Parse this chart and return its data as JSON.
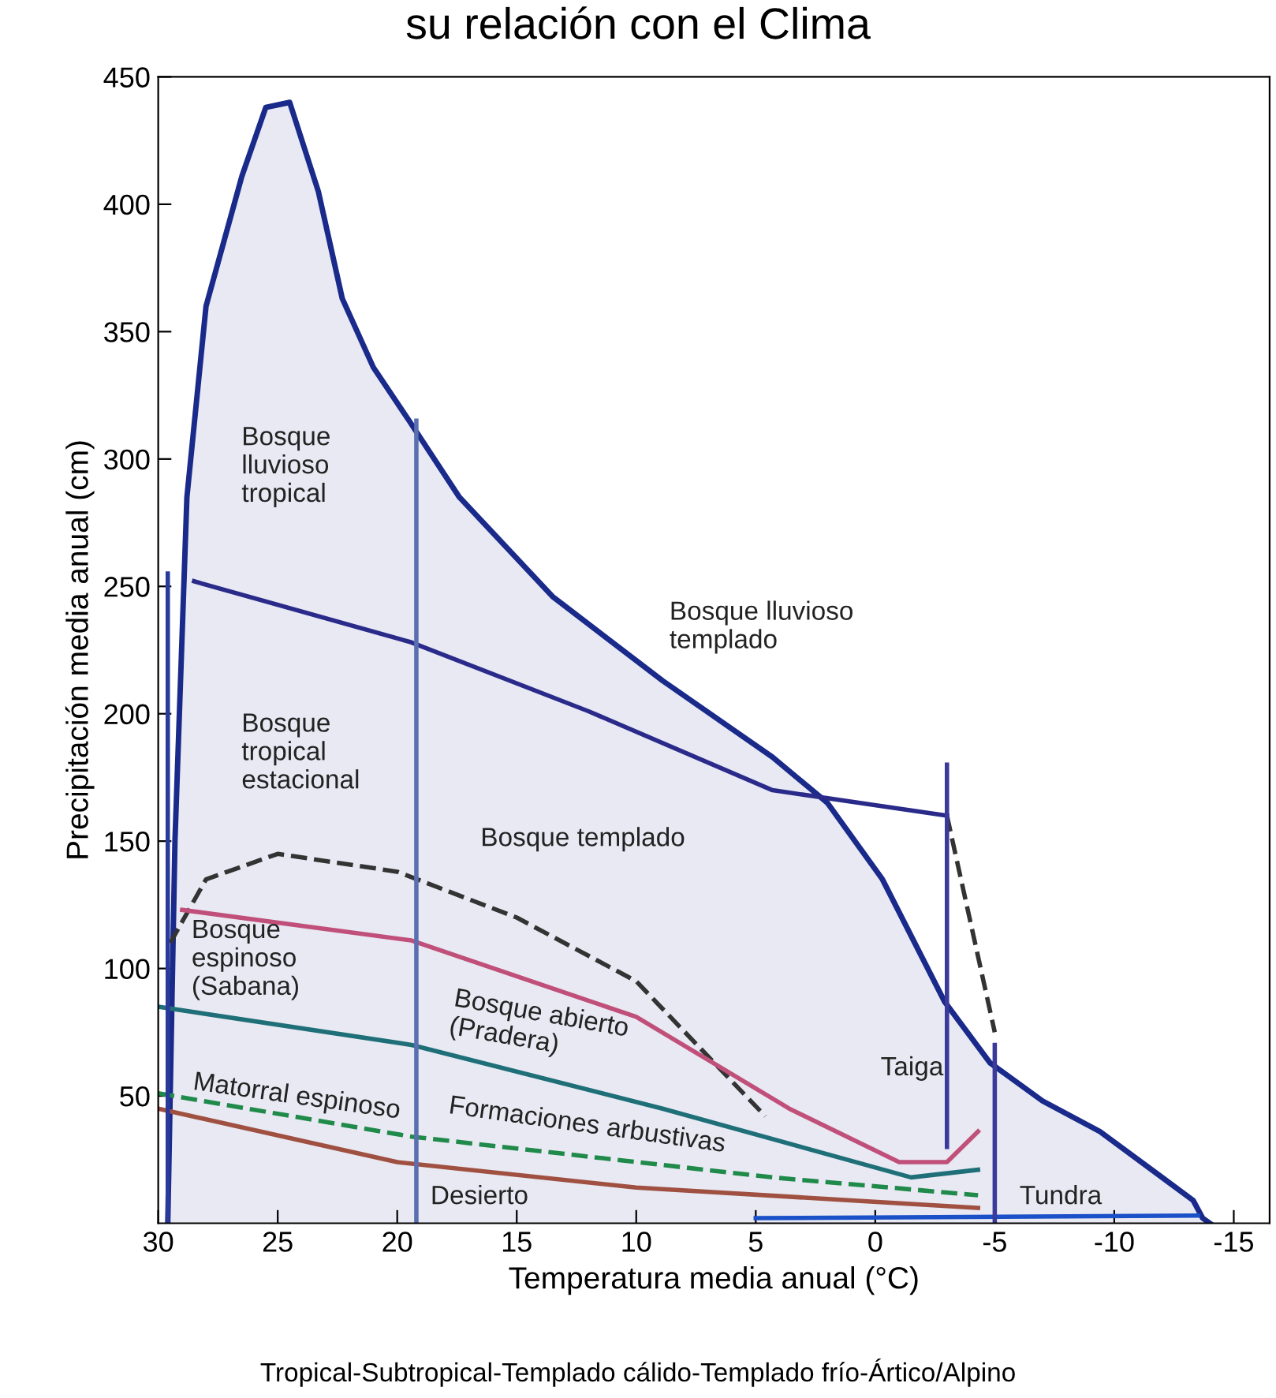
{
  "chart_data": {
    "type": "line",
    "title": "su relación con el Clima",
    "xlabel": "Temperatura media anual (°C)",
    "ylabel": "Precipitación media anual (cm)",
    "xlim": [
      30,
      -16.5
    ],
    "ylim": [
      0,
      450
    ],
    "xticks": [
      30,
      25,
      20,
      15,
      10,
      5,
      0,
      -5,
      -10,
      -15
    ],
    "yticks": [
      50,
      100,
      150,
      200,
      250,
      300,
      350,
      400,
      450
    ],
    "grid": false,
    "legend": false,
    "marker": "none",
    "series": [
      {
        "type": "area",
        "color": "#1a2a8a",
        "x": [
          29.6,
          29.3,
          28.8,
          28,
          26.5,
          25.5,
          24.5,
          23.3,
          22.3,
          21,
          19.5,
          17.4,
          13.5,
          8.9,
          4.3,
          2,
          -0.3,
          -2.9,
          -4.8,
          -7,
          -9.4,
          -12,
          -13.3,
          -13.7,
          -14
        ],
        "values": [
          0,
          150,
          285,
          360,
          411,
          438,
          440,
          405,
          363,
          336,
          315,
          285,
          246,
          213,
          183,
          165,
          135,
          87,
          63,
          48,
          36,
          18,
          9,
          2,
          0
        ]
      },
      {
        "color": "#2a2a8a",
        "x": [
          28.5,
          19.4,
          12,
          4.3,
          -3
        ],
        "values": [
          252,
          228,
          201,
          170,
          160
        ]
      },
      {
        "type": "line",
        "color": "#333333",
        "line_style": "dashed",
        "x": [
          -3,
          -5
        ],
        "values": [
          160,
          75
        ]
      },
      {
        "type": "line",
        "color": "#333333",
        "line_style": "dashed",
        "x": [
          29.5,
          28,
          25,
          20,
          15,
          10,
          4.6
        ],
        "values": [
          110,
          135,
          145,
          138,
          120,
          95,
          42
        ]
      },
      {
        "type": "line",
        "color": "#c0507a",
        "x": [
          29,
          19.4,
          10,
          3.6,
          -1,
          -3,
          -4.3
        ],
        "values": [
          123,
          111,
          81,
          45,
          24,
          24,
          36
        ]
      },
      {
        "type": "line",
        "color": "#1f6f78",
        "x": [
          30,
          19.4,
          8.9,
          -1.5,
          -4.3
        ],
        "values": [
          85,
          70,
          45,
          18,
          21
        ]
      },
      {
        "type": "line",
        "color": "#1f8a4a",
        "line_style": "dashed",
        "x": [
          30,
          19.4,
          4.3,
          -4.3
        ],
        "values": [
          51,
          34,
          18,
          11
        ]
      },
      {
        "type": "line",
        "color": "#a05040",
        "x": [
          30,
          20,
          10,
          -4.3
        ],
        "values": [
          45,
          24,
          14,
          6
        ]
      },
      {
        "type": "line",
        "color": "#1a50c8",
        "x": [
          5,
          -13.5
        ],
        "values": [
          2,
          3
        ]
      },
      {
        "type": "line",
        "color": "#5a6fb0",
        "x": [
          19.2,
          19.2
        ],
        "values": [
          0,
          315
        ]
      },
      {
        "type": "line",
        "color": "#3a3a9a",
        "x": [
          -3,
          -3
        ],
        "values": [
          30,
          180
        ]
      },
      {
        "type": "line",
        "color": "#3a3a9a",
        "x": [
          -5,
          -5
        ],
        "values": [
          0,
          70
        ]
      },
      {
        "type": "line",
        "color": "#2a3a9a",
        "x": [
          29.6,
          29.6
        ],
        "values": [
          0,
          255
        ]
      }
    ],
    "annotations": [
      "Bosque\nlluvioso\ntropical",
      "Bosque lluvioso\ntemplado",
      "Bosque\ntropical\nestacional",
      "Bosque templado",
      "Bosque\nespinoso\n(Sabana)",
      "Bosque abierto\n(Pradera)",
      "Taiga",
      "Matorral espinoso",
      "Formaciones arbustivas",
      "Desierto",
      "Tundra",
      "Tropical-Subtropical-Templado cálido-Templado frío-Ártico/Alpino"
    ]
  }
}
